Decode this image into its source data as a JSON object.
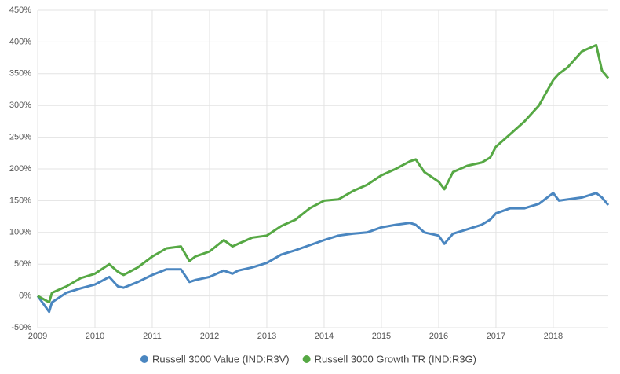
{
  "chart_data": {
    "type": "line",
    "x": [
      2009,
      2009.2,
      2009.25,
      2009.5,
      2009.75,
      2010,
      2010.25,
      2010.4,
      2010.5,
      2010.75,
      2011,
      2011.25,
      2011.5,
      2011.65,
      2011.75,
      2012,
      2012.25,
      2012.4,
      2012.5,
      2012.75,
      2013,
      2013.25,
      2013.5,
      2013.75,
      2014,
      2014.25,
      2014.5,
      2014.75,
      2015,
      2015.25,
      2015.5,
      2015.6,
      2015.75,
      2016,
      2016.1,
      2016.25,
      2016.5,
      2016.75,
      2016.9,
      2017,
      2017.25,
      2017.5,
      2017.75,
      2018,
      2018.1,
      2018.25,
      2018.5,
      2018.75,
      2018.85,
      2018.96
    ],
    "series": [
      {
        "name": "Russell 3000 Value (IND:R3V)",
        "color": "#4a86c0",
        "values": [
          0,
          -25,
          -10,
          5,
          12,
          18,
          30,
          15,
          13,
          22,
          33,
          42,
          42,
          22,
          25,
          30,
          40,
          35,
          40,
          45,
          52,
          65,
          72,
          80,
          88,
          95,
          98,
          100,
          108,
          112,
          115,
          112,
          100,
          95,
          82,
          98,
          105,
          112,
          120,
          130,
          138,
          138,
          145,
          162,
          150,
          152,
          155,
          162,
          155,
          143
        ]
      },
      {
        "name": "Russell 3000 Growth TR (IND:R3G)",
        "color": "#56a844",
        "values": [
          0,
          -10,
          5,
          15,
          28,
          35,
          50,
          38,
          33,
          45,
          62,
          75,
          78,
          55,
          62,
          70,
          88,
          78,
          82,
          92,
          95,
          110,
          120,
          138,
          150,
          152,
          165,
          175,
          190,
          200,
          212,
          215,
          195,
          180,
          168,
          195,
          205,
          210,
          218,
          235,
          255,
          275,
          300,
          340,
          350,
          360,
          385,
          395,
          355,
          343
        ]
      }
    ],
    "xlim": [
      2009,
      2018.96
    ],
    "xticks": [
      2009,
      2010,
      2011,
      2012,
      2013,
      2014,
      2015,
      2016,
      2017,
      2018
    ],
    "ylim": [
      -50,
      450
    ],
    "yticks": [
      {
        "value": -50,
        "label": "-50%"
      },
      {
        "value": 0,
        "label": "0%"
      },
      {
        "value": 50,
        "label": "50%"
      },
      {
        "value": 100,
        "label": "100%"
      },
      {
        "value": 150,
        "label": "150%"
      },
      {
        "value": 200,
        "label": "200%"
      },
      {
        "value": 250,
        "label": "250%"
      },
      {
        "value": 300,
        "label": "300%"
      },
      {
        "value": 350,
        "label": "350%"
      },
      {
        "value": 400,
        "label": "400%"
      },
      {
        "value": 450,
        "label": "450%"
      }
    ],
    "grid": true
  }
}
